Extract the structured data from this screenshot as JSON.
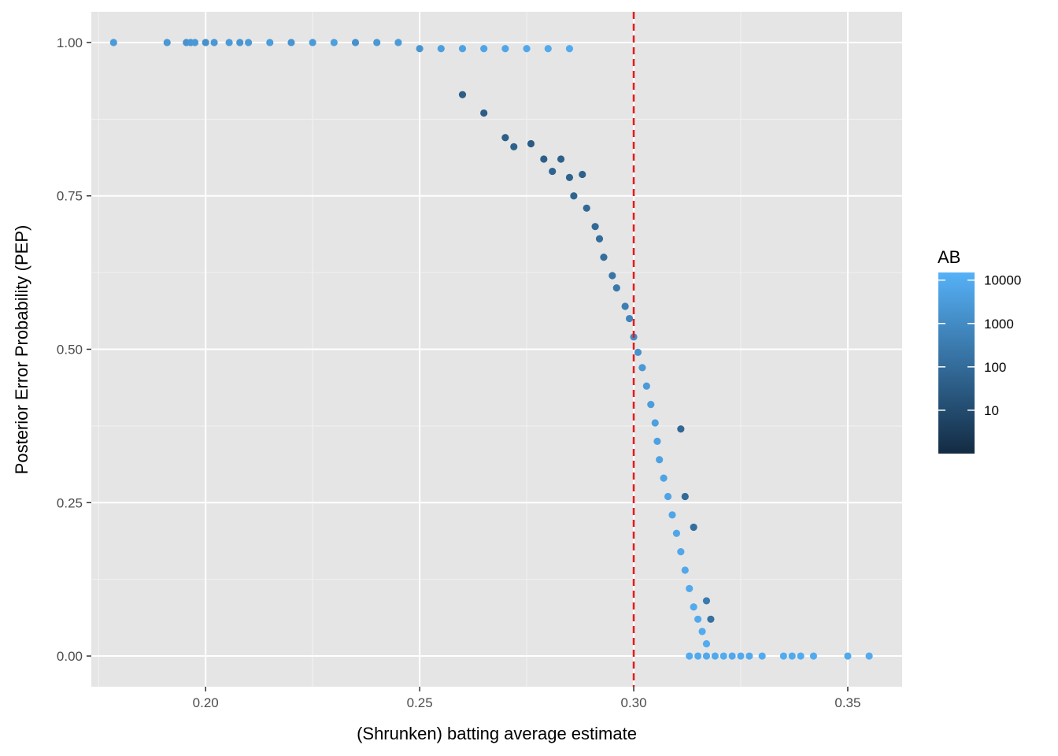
{
  "chart_data": {
    "type": "scatter",
    "title": "",
    "xlabel": "(Shrunken) batting average estimate",
    "ylabel": "Posterior Error Probability (PEP)",
    "xlim": [
      0.1733,
      0.3627
    ],
    "ylim": [
      -0.05,
      1.05
    ],
    "x_ticks": [
      0.2,
      0.25,
      0.3,
      0.35
    ],
    "x_tick_labels": [
      "0.20",
      "0.25",
      "0.30",
      "0.35"
    ],
    "y_ticks": [
      0.0,
      0.25,
      0.5,
      0.75,
      1.0
    ],
    "y_tick_labels": [
      "0.00",
      "0.25",
      "0.50",
      "0.75",
      "1.00"
    ],
    "grid": true,
    "background": "#e5e5e5",
    "reference_line": {
      "x": 0.3,
      "style": "dashed",
      "color": "#e41a1c"
    },
    "color_scale": {
      "title": "AB",
      "log": true,
      "range": [
        1,
        15000
      ],
      "breaks": [
        10,
        100,
        1000,
        10000
      ],
      "break_labels": [
        "10",
        "100",
        "1000",
        "10000"
      ],
      "low_color": "#132b43",
      "high_color": "#56b1f7"
    },
    "legend_position": "right",
    "point_color_note": "color = AB (log scale)",
    "points": [
      {
        "x": 0.1785,
        "y": 1.0,
        "ab": 3000
      },
      {
        "x": 0.191,
        "y": 1.0,
        "ab": 2500
      },
      {
        "x": 0.1955,
        "y": 1.0,
        "ab": 1800
      },
      {
        "x": 0.1965,
        "y": 1.0,
        "ab": 2200
      },
      {
        "x": 0.1975,
        "y": 1.0,
        "ab": 2600
      },
      {
        "x": 0.2,
        "y": 1.0,
        "ab": 1500
      },
      {
        "x": 0.202,
        "y": 1.0,
        "ab": 2400
      },
      {
        "x": 0.2055,
        "y": 1.0,
        "ab": 3000
      },
      {
        "x": 0.208,
        "y": 1.0,
        "ab": 2000
      },
      {
        "x": 0.21,
        "y": 1.0,
        "ab": 2800
      },
      {
        "x": 0.215,
        "y": 1.0,
        "ab": 3500
      },
      {
        "x": 0.22,
        "y": 1.0,
        "ab": 2000
      },
      {
        "x": 0.225,
        "y": 1.0,
        "ab": 3000
      },
      {
        "x": 0.23,
        "y": 1.0,
        "ab": 4000
      },
      {
        "x": 0.235,
        "y": 1.0,
        "ab": 1500
      },
      {
        "x": 0.24,
        "y": 1.0,
        "ab": 2500
      },
      {
        "x": 0.245,
        "y": 1.0,
        "ab": 3000
      },
      {
        "x": 0.25,
        "y": 0.99,
        "ab": 2000
      },
      {
        "x": 0.255,
        "y": 0.99,
        "ab": 4000
      },
      {
        "x": 0.26,
        "y": 0.99,
        "ab": 5000
      },
      {
        "x": 0.265,
        "y": 0.99,
        "ab": 6000
      },
      {
        "x": 0.27,
        "y": 0.99,
        "ab": 7000
      },
      {
        "x": 0.275,
        "y": 0.99,
        "ab": 8000
      },
      {
        "x": 0.28,
        "y": 0.99,
        "ab": 9000
      },
      {
        "x": 0.285,
        "y": 0.99,
        "ab": 10000
      },
      {
        "x": 0.26,
        "y": 0.915,
        "ab": 40
      },
      {
        "x": 0.265,
        "y": 0.885,
        "ab": 35
      },
      {
        "x": 0.27,
        "y": 0.845,
        "ab": 40
      },
      {
        "x": 0.272,
        "y": 0.83,
        "ab": 50
      },
      {
        "x": 0.276,
        "y": 0.835,
        "ab": 30
      },
      {
        "x": 0.279,
        "y": 0.81,
        "ab": 40
      },
      {
        "x": 0.281,
        "y": 0.79,
        "ab": 60
      },
      {
        "x": 0.283,
        "y": 0.81,
        "ab": 45
      },
      {
        "x": 0.285,
        "y": 0.78,
        "ab": 55
      },
      {
        "x": 0.288,
        "y": 0.785,
        "ab": 50
      },
      {
        "x": 0.286,
        "y": 0.75,
        "ab": 60
      },
      {
        "x": 0.289,
        "y": 0.73,
        "ab": 80
      },
      {
        "x": 0.291,
        "y": 0.7,
        "ab": 90
      },
      {
        "x": 0.292,
        "y": 0.68,
        "ab": 110
      },
      {
        "x": 0.293,
        "y": 0.65,
        "ab": 130
      },
      {
        "x": 0.295,
        "y": 0.62,
        "ab": 200
      },
      {
        "x": 0.296,
        "y": 0.6,
        "ab": 250
      },
      {
        "x": 0.298,
        "y": 0.57,
        "ab": 400
      },
      {
        "x": 0.299,
        "y": 0.55,
        "ab": 600
      },
      {
        "x": 0.3,
        "y": 0.52,
        "ab": 1000
      },
      {
        "x": 0.301,
        "y": 0.495,
        "ab": 1800
      },
      {
        "x": 0.302,
        "y": 0.47,
        "ab": 2500
      },
      {
        "x": 0.303,
        "y": 0.44,
        "ab": 3000
      },
      {
        "x": 0.304,
        "y": 0.41,
        "ab": 3500
      },
      {
        "x": 0.305,
        "y": 0.38,
        "ab": 4000
      },
      {
        "x": 0.3055,
        "y": 0.35,
        "ab": 4500
      },
      {
        "x": 0.306,
        "y": 0.32,
        "ab": 5000
      },
      {
        "x": 0.307,
        "y": 0.29,
        "ab": 5500
      },
      {
        "x": 0.308,
        "y": 0.26,
        "ab": 6000
      },
      {
        "x": 0.309,
        "y": 0.23,
        "ab": 6500
      },
      {
        "x": 0.31,
        "y": 0.2,
        "ab": 7000
      },
      {
        "x": 0.311,
        "y": 0.17,
        "ab": 7500
      },
      {
        "x": 0.312,
        "y": 0.14,
        "ab": 8000
      },
      {
        "x": 0.313,
        "y": 0.11,
        "ab": 8500
      },
      {
        "x": 0.314,
        "y": 0.08,
        "ab": 9000
      },
      {
        "x": 0.315,
        "y": 0.06,
        "ab": 9000
      },
      {
        "x": 0.316,
        "y": 0.04,
        "ab": 9500
      },
      {
        "x": 0.317,
        "y": 0.02,
        "ab": 10000
      },
      {
        "x": 0.311,
        "y": 0.37,
        "ab": 80
      },
      {
        "x": 0.312,
        "y": 0.26,
        "ab": 100
      },
      {
        "x": 0.314,
        "y": 0.21,
        "ab": 120
      },
      {
        "x": 0.317,
        "y": 0.09,
        "ab": 300
      },
      {
        "x": 0.318,
        "y": 0.06,
        "ab": 150
      },
      {
        "x": 0.313,
        "y": 0.0,
        "ab": 10000
      },
      {
        "x": 0.315,
        "y": 0.0,
        "ab": 9000
      },
      {
        "x": 0.317,
        "y": 0.0,
        "ab": 8000
      },
      {
        "x": 0.319,
        "y": 0.0,
        "ab": 9000
      },
      {
        "x": 0.321,
        "y": 0.0,
        "ab": 9500
      },
      {
        "x": 0.323,
        "y": 0.0,
        "ab": 8000
      },
      {
        "x": 0.325,
        "y": 0.0,
        "ab": 9000
      },
      {
        "x": 0.327,
        "y": 0.0,
        "ab": 9000
      },
      {
        "x": 0.33,
        "y": 0.0,
        "ab": 10000
      },
      {
        "x": 0.335,
        "y": 0.0,
        "ab": 10000
      },
      {
        "x": 0.337,
        "y": 0.0,
        "ab": 9000
      },
      {
        "x": 0.339,
        "y": 0.0,
        "ab": 10000
      },
      {
        "x": 0.342,
        "y": 0.0,
        "ab": 10000
      },
      {
        "x": 0.35,
        "y": 0.0,
        "ab": 9000
      },
      {
        "x": 0.355,
        "y": 0.0,
        "ab": 10000
      }
    ]
  }
}
